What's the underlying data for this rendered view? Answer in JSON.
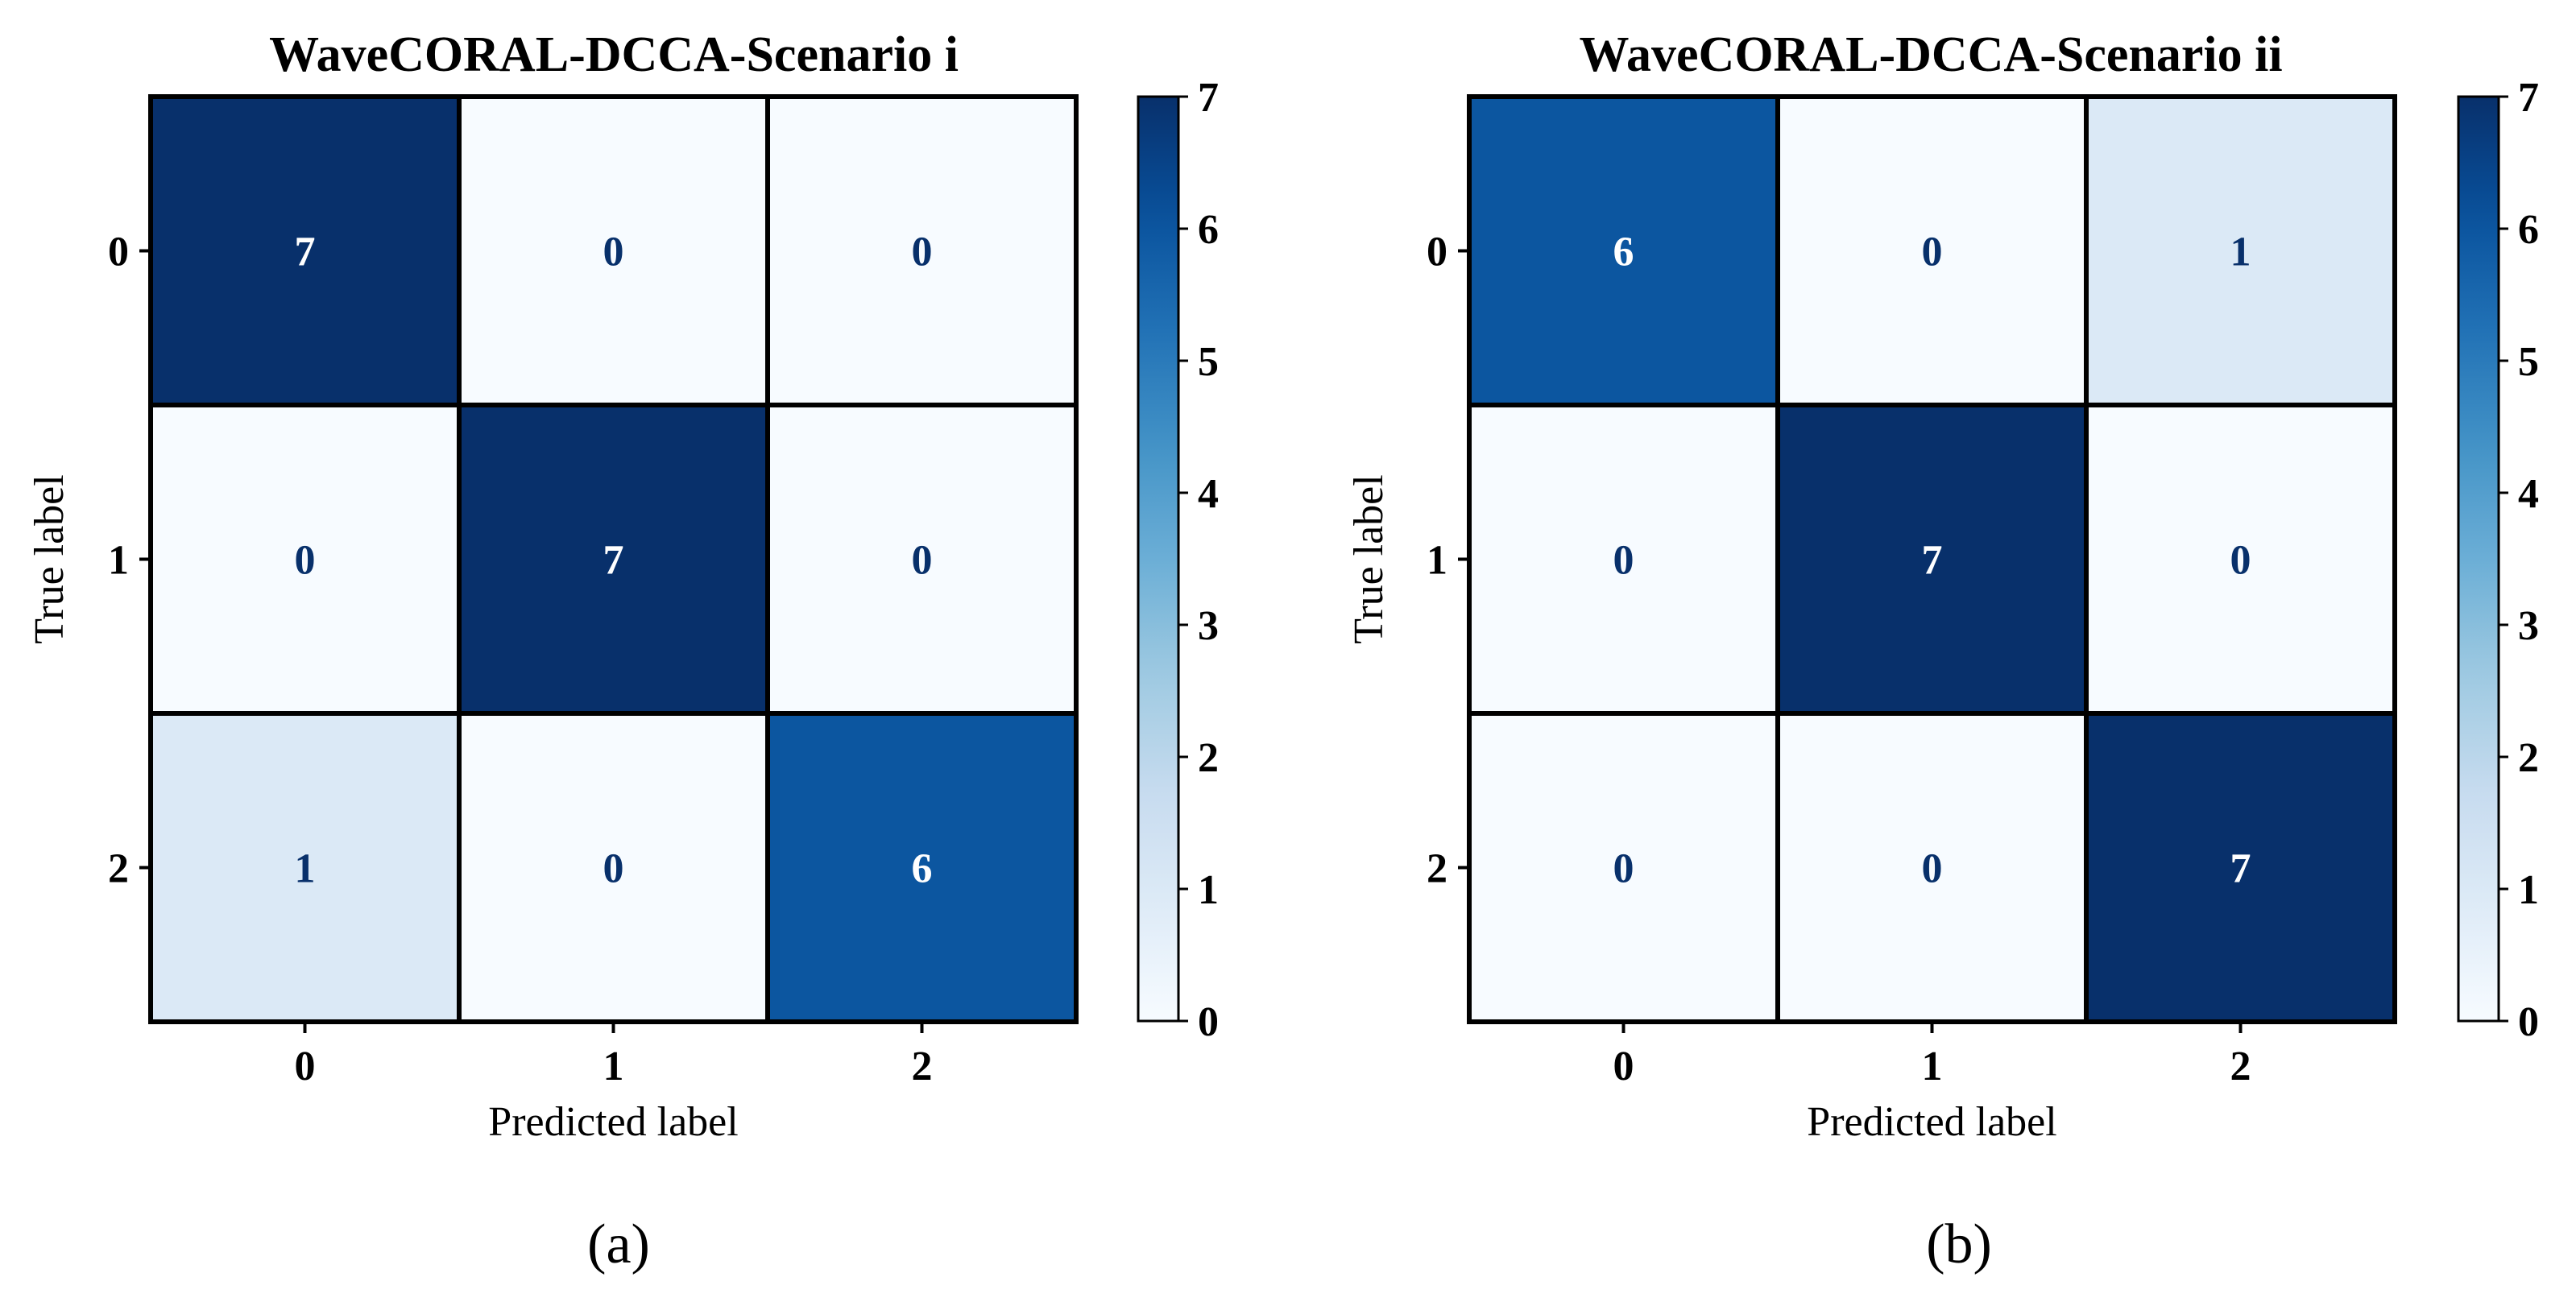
{
  "colormap": [
    "#f7fbff",
    "#deebf7",
    "#c6dbef",
    "#9ecae1",
    "#6baed6",
    "#4292c6",
    "#2171b5",
    "#08519c",
    "#08306b"
  ],
  "chart_data": [
    {
      "type": "heatmap",
      "title": "WaveCORAL-DCCA-Scenario i",
      "xlabel": "Predicted label",
      "ylabel": "True label",
      "x_ticks": [
        "0",
        "1",
        "2"
      ],
      "y_ticks": [
        "0",
        "1",
        "2"
      ],
      "matrix": [
        [
          7,
          0,
          0
        ],
        [
          0,
          7,
          0
        ],
        [
          1,
          0,
          6
        ]
      ],
      "vmin": 0,
      "vmax": 7,
      "colorbar_ticks": [
        "0",
        "1",
        "2",
        "3",
        "4",
        "5",
        "6",
        "7"
      ],
      "panel_label": "(a)"
    },
    {
      "type": "heatmap",
      "title": "WaveCORAL-DCCA-Scenario ii",
      "xlabel": "Predicted label",
      "ylabel": "True label",
      "x_ticks": [
        "0",
        "1",
        "2"
      ],
      "y_ticks": [
        "0",
        "1",
        "2"
      ],
      "matrix": [
        [
          6,
          0,
          1
        ],
        [
          0,
          7,
          0
        ],
        [
          0,
          0,
          7
        ]
      ],
      "vmin": 0,
      "vmax": 7,
      "colorbar_ticks": [
        "0",
        "1",
        "2",
        "3",
        "4",
        "5",
        "6",
        "7"
      ],
      "panel_label": "(b)"
    }
  ]
}
